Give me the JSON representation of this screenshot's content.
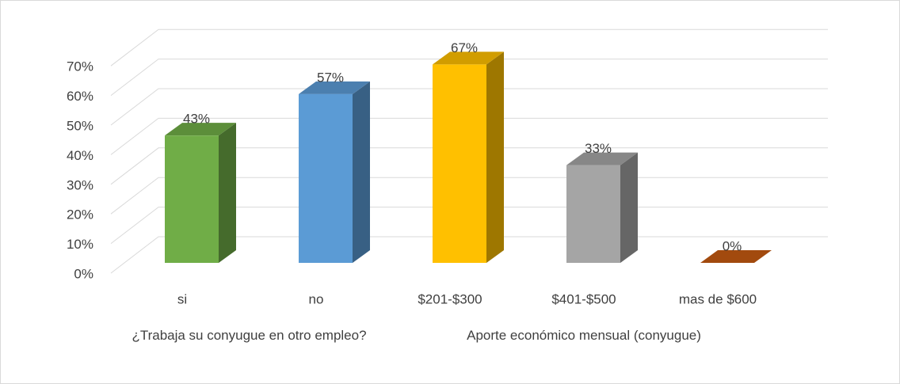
{
  "chart_data": {
    "type": "bar3d",
    "categories": [
      "si",
      "no",
      "$201-$300",
      "$401-$500",
      "mas de $600"
    ],
    "values": [
      43,
      57,
      67,
      33,
      0
    ],
    "value_labels": [
      "43%",
      "57%",
      "67%",
      "33%",
      "0%"
    ],
    "colors": [
      "#70ad47",
      "#5b9bd5",
      "#ffc000",
      "#a5a5a5",
      "#c55a11"
    ],
    "category_groups": [
      {
        "label": "¿Trabaja su conyugue en otro empleo?",
        "size": 2
      },
      {
        "label": "Aporte económico mensual (conyugue)",
        "size": 3
      }
    ],
    "ylim": [
      0,
      70
    ],
    "yticks": [
      {
        "value": 0,
        "label": "0%"
      },
      {
        "value": 10,
        "label": "10%"
      },
      {
        "value": 20,
        "label": "20%"
      },
      {
        "value": 30,
        "label": "30%"
      },
      {
        "value": 40,
        "label": "40%"
      },
      {
        "value": 50,
        "label": "50%"
      },
      {
        "value": 60,
        "label": "60%"
      },
      {
        "value": 70,
        "label": "70%"
      }
    ],
    "grid": true
  }
}
